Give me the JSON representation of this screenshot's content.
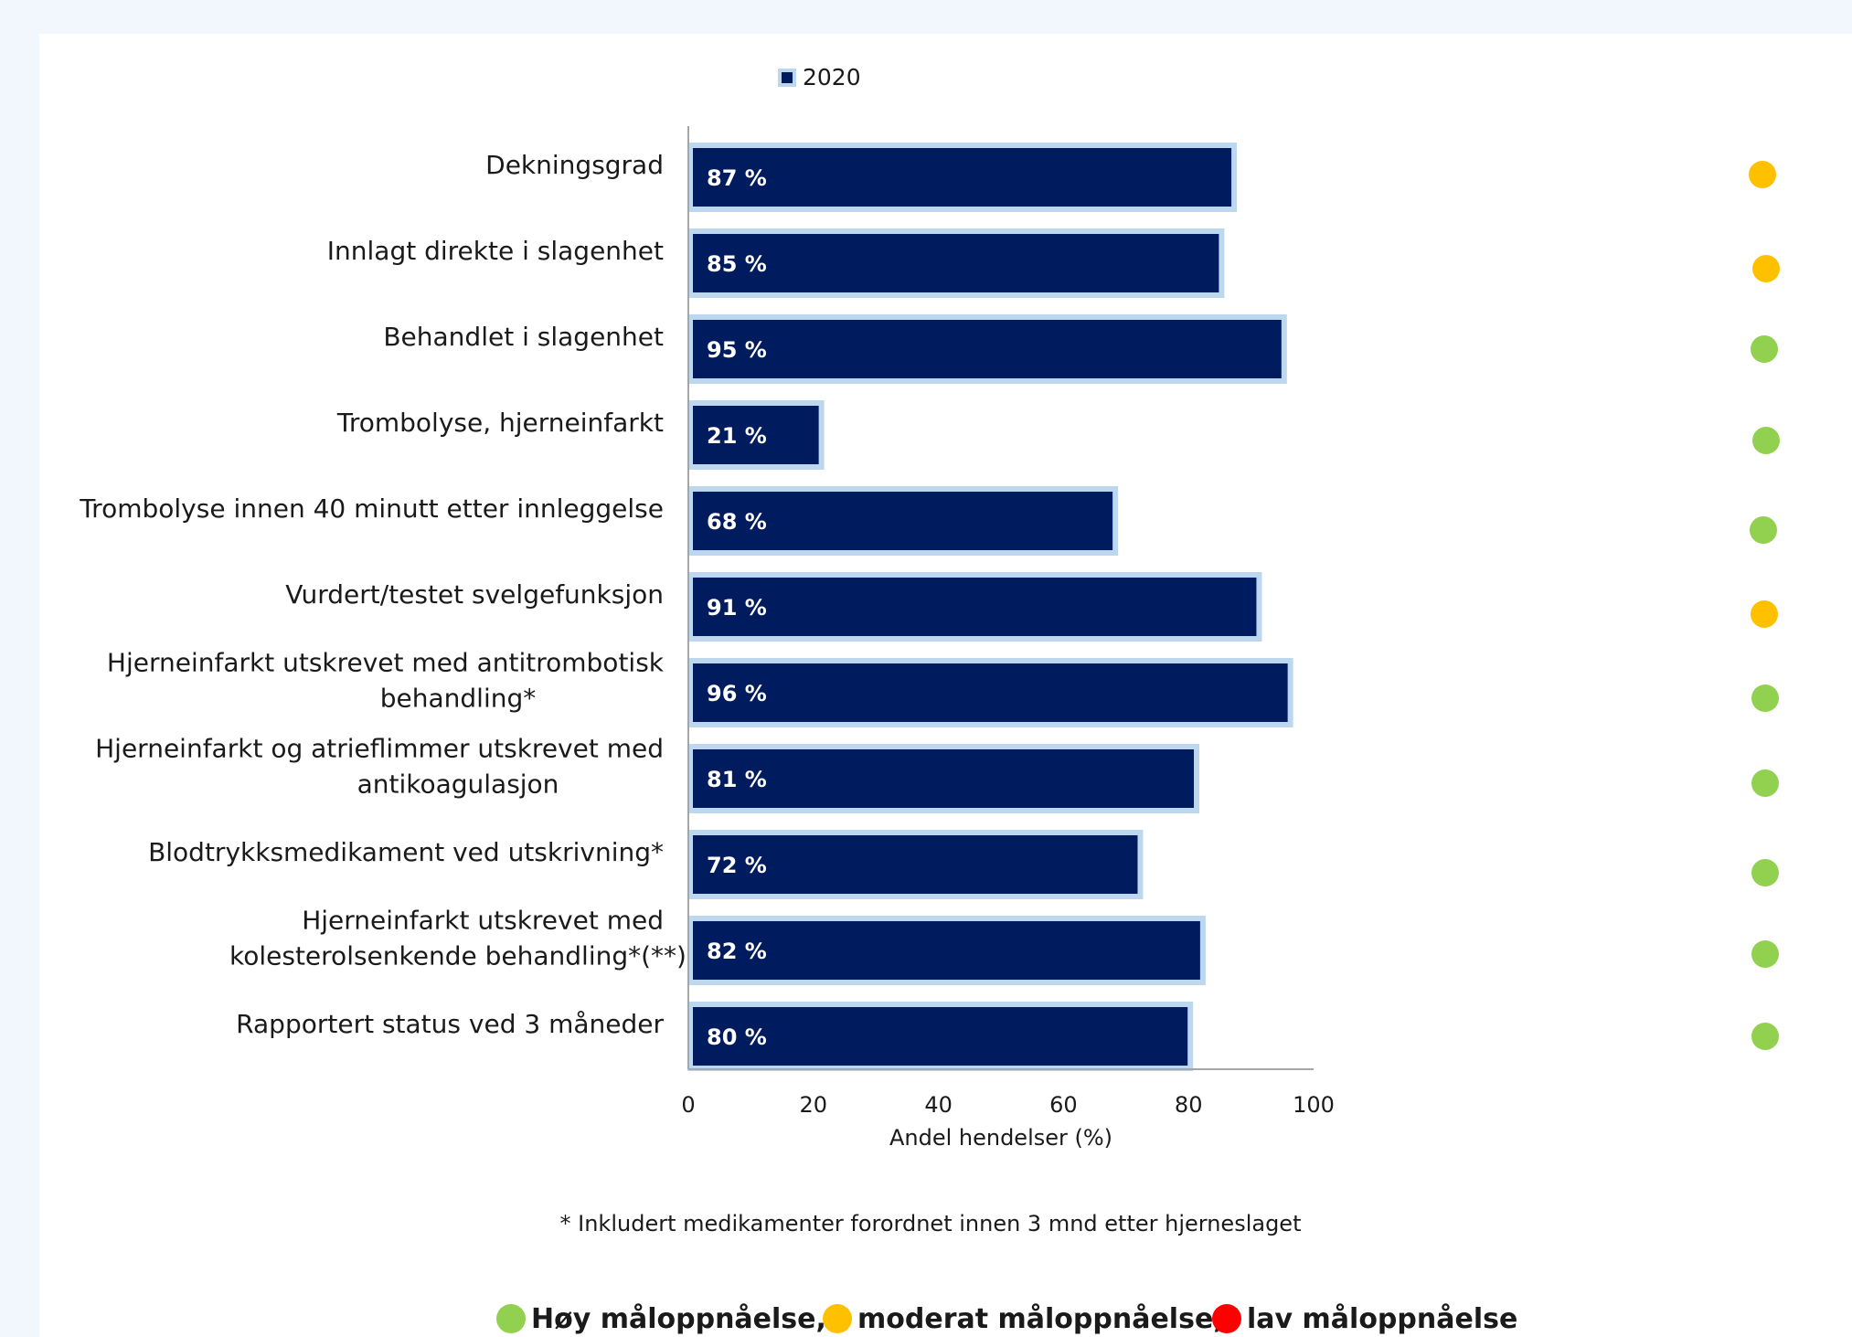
{
  "chart_data": {
    "type": "bar",
    "orientation": "horizontal",
    "categories": [
      [
        "Dekningsgrad"
      ],
      [
        "Innlagt direkte i slagenhet"
      ],
      [
        "Behandlet i slagenhet"
      ],
      [
        "Trombolyse, hjerneinfarkt"
      ],
      [
        "Trombolyse innen 40 minutt etter innleggelse"
      ],
      [
        "Vurdert/testet svelgefunksjon"
      ],
      [
        "Hjerneinfarkt utskrevet med antitrombotisk",
        "behandling*"
      ],
      [
        "Hjerneinfarkt og atrieflimmer utskrevet med",
        "antikoagulasjon"
      ],
      [
        "Blodtrykksmedikament ved utskrivning*"
      ],
      [
        "Hjerneinfarkt utskrevet med",
        "kolesterolsenkende behandling*(**)"
      ],
      [
        "Rapportert status ved 3 måneder"
      ]
    ],
    "series": [
      {
        "name": "2020",
        "values": [
          87,
          85,
          95,
          21,
          68,
          91,
          96,
          81,
          72,
          82,
          80
        ],
        "labels": [
          "87 %",
          "85 %",
          "95 %",
          "21 %",
          "68 %",
          "91 %",
          "96 %",
          "81 %",
          "72 %",
          "82 %",
          "80 %"
        ]
      }
    ],
    "status": [
      "moderat",
      "moderat",
      "høy",
      "høy",
      "høy",
      "moderat",
      "høy",
      "høy",
      "høy",
      "høy",
      "høy"
    ],
    "xlabel": "Andel hendelser (%)",
    "xlim": [
      0,
      100
    ],
    "xticks": [
      "0",
      "20",
      "40",
      "60",
      "80",
      "100"
    ],
    "legend_position": "top",
    "grid": false
  },
  "footnote": "* Inkludert medikamenter forordnet innen 3 mnd etter hjerneslaget",
  "status_key": [
    {
      "key": "høy",
      "label": "Høy måloppnåelse,",
      "color": "#92d050"
    },
    {
      "key": "moderat",
      "label": "moderat måloppnåelse,",
      "color": "#ffc000"
    },
    {
      "key": "lav",
      "label": "lav måloppnåelse",
      "color": "#ff0000"
    }
  ],
  "colors": {
    "bar_fill": "#001b5e",
    "bar_outline": "#bdd7ee",
    "axis": "#a6a6a6"
  }
}
